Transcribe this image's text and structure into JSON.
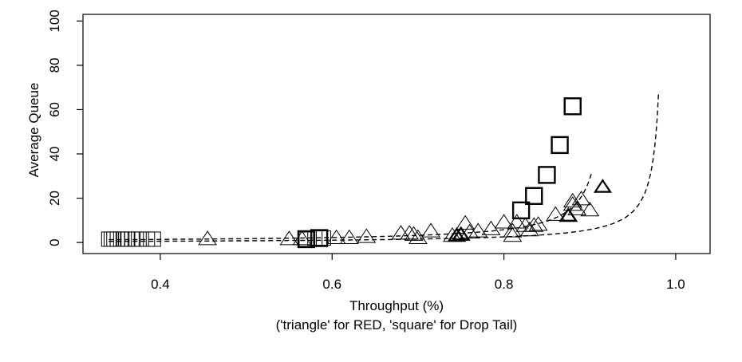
{
  "chart_data": {
    "type": "scatter",
    "xlabel": "Throughput (%)",
    "subtitle": "('triangle' for RED, 'square' for Drop Tail)",
    "ylabel": "Average Queue",
    "xlim": [
      0.31,
      1.04
    ],
    "ylim": [
      -5,
      103
    ],
    "xticks": [
      0.4,
      0.6,
      0.8,
      1.0
    ],
    "xtick_labels": [
      "0.4",
      "0.6",
      "0.8",
      "1.0"
    ],
    "yticks": [
      0,
      20,
      40,
      60,
      80,
      100
    ],
    "ytick_labels": [
      "0",
      "20",
      "40",
      "60",
      "80",
      "100"
    ],
    "grid": false,
    "series": [
      {
        "marker": "triangle",
        "points": [
          [
            0.455,
            1.5
          ],
          [
            0.55,
            1.5
          ],
          [
            0.565,
            1.5
          ],
          [
            0.605,
            2
          ],
          [
            0.62,
            2
          ],
          [
            0.64,
            2.5
          ],
          [
            0.68,
            4
          ],
          [
            0.69,
            4
          ],
          [
            0.695,
            3.5
          ],
          [
            0.7,
            2
          ],
          [
            0.715,
            5
          ],
          [
            0.74,
            3
          ],
          [
            0.745,
            3
          ],
          [
            0.75,
            3.5
          ],
          [
            0.755,
            8.5
          ],
          [
            0.76,
            4.5
          ],
          [
            0.77,
            5
          ],
          [
            0.785,
            6
          ],
          [
            0.8,
            9
          ],
          [
            0.81,
            5
          ],
          [
            0.81,
            3
          ],
          [
            0.815,
            9
          ],
          [
            0.825,
            7.5
          ],
          [
            0.835,
            7.5
          ],
          [
            0.83,
            5.5
          ],
          [
            0.84,
            8
          ],
          [
            0.86,
            12.5
          ],
          [
            0.875,
            12
          ],
          [
            0.88,
            17
          ],
          [
            0.88,
            18.5
          ],
          [
            0.885,
            15
          ],
          [
            0.89,
            19.5
          ],
          [
            0.9,
            14.5
          ]
        ],
        "bold_points": [
          [
            0.745,
            3
          ],
          [
            0.75,
            3.5
          ],
          [
            0.875,
            12
          ],
          [
            0.915,
            25
          ]
        ]
      },
      {
        "marker": "square",
        "points": [
          [
            0.34,
            1.5
          ],
          [
            0.343,
            1.5
          ],
          [
            0.346,
            1.5
          ],
          [
            0.35,
            1.5
          ],
          [
            0.354,
            1.5
          ],
          [
            0.358,
            1.5
          ],
          [
            0.362,
            1.5
          ],
          [
            0.367,
            1.5
          ],
          [
            0.372,
            1.5
          ],
          [
            0.378,
            1.5
          ],
          [
            0.385,
            1.5
          ],
          [
            0.392,
            1.5
          ],
          [
            0.57,
            1.5
          ],
          [
            0.58,
            2
          ],
          [
            0.59,
            2
          ]
        ],
        "bold_points": [
          [
            0.57,
            1.5
          ],
          [
            0.585,
            2
          ],
          [
            0.82,
            14.5
          ],
          [
            0.835,
            21
          ],
          [
            0.85,
            30.5
          ],
          [
            0.865,
            44
          ],
          [
            0.88,
            61.5
          ]
        ]
      }
    ],
    "fit_curves": [
      {
        "marker": "square",
        "model": "reciprocal",
        "a": 0.78,
        "b": 0.925,
        "c": 0.8,
        "x_range": [
          0.34,
          0.902
        ]
      },
      {
        "marker": "triangle",
        "model": "reciprocal",
        "a": 0.55,
        "b": 0.988,
        "c": 0.2,
        "x_range": [
          0.34,
          0.98
        ]
      }
    ]
  }
}
